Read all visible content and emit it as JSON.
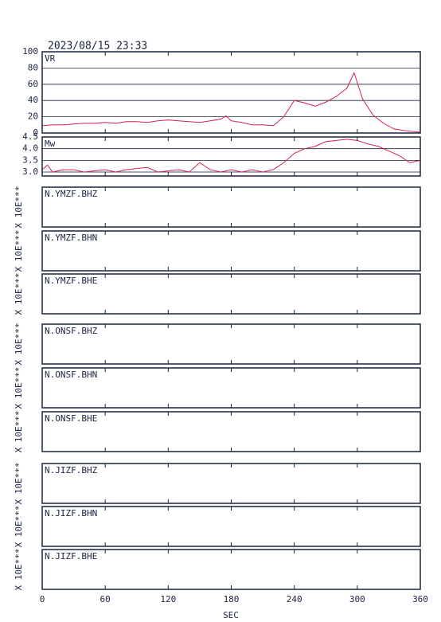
{
  "header": {
    "timestamp": "2023/08/15 23:33"
  },
  "x_axis": {
    "label": "SEC",
    "xlim": [
      0,
      360
    ],
    "xticks": [
      0,
      60,
      120,
      180,
      240,
      300,
      360
    ]
  },
  "chart_data": [
    {
      "type": "line",
      "ylabel": "VR",
      "color": "#d6204e",
      "grid": true,
      "ylim": [
        0,
        100
      ],
      "yticks": [
        0,
        20,
        40,
        60,
        80,
        100
      ],
      "x": [
        0,
        10,
        20,
        30,
        40,
        50,
        60,
        70,
        80,
        90,
        100,
        110,
        120,
        130,
        140,
        150,
        160,
        170,
        175,
        180,
        190,
        200,
        210,
        220,
        230,
        240,
        250,
        260,
        270,
        280,
        290,
        297,
        305,
        315,
        325,
        335,
        345,
        360
      ],
      "values": [
        9,
        10,
        10,
        11,
        12,
        12,
        13,
        12,
        14,
        14,
        13,
        15,
        16,
        15,
        14,
        13,
        15,
        17,
        21,
        15,
        13,
        10,
        10,
        9,
        20,
        40,
        37,
        33,
        38,
        45,
        55,
        74,
        42,
        22,
        12,
        5,
        3,
        1
      ]
    },
    {
      "type": "line",
      "ylabel": "Mw",
      "color": "#d6204e",
      "grid": true,
      "ylim": [
        2.83,
        4.5
      ],
      "yticks": [
        {
          "value": 3,
          "label": "3.0"
        },
        3.5,
        {
          "value": 4,
          "label": "4.0"
        },
        4.5
      ],
      "x": [
        0,
        5,
        10,
        20,
        30,
        40,
        50,
        60,
        70,
        80,
        100,
        110,
        130,
        140,
        150,
        160,
        170,
        180,
        190,
        200,
        210,
        220,
        230,
        240,
        250,
        260,
        270,
        280,
        290,
        300,
        310,
        320,
        330,
        340,
        350,
        360
      ],
      "values": [
        3.1,
        3.3,
        3.0,
        3.1,
        3.1,
        3.0,
        3.05,
        3.1,
        3.0,
        3.1,
        3.2,
        3.0,
        3.1,
        3.0,
        3.4,
        3.1,
        3.0,
        3.1,
        3.0,
        3.1,
        3.0,
        3.1,
        3.4,
        3.8,
        4.0,
        4.1,
        4.3,
        4.35,
        4.4,
        4.35,
        4.2,
        4.1,
        3.9,
        3.7,
        3.4,
        3.5
      ]
    },
    {
      "type": "waveform",
      "label": "N.YMZF.BHZ",
      "ylabel": "X 10E***"
    },
    {
      "type": "waveform",
      "label": "N.YMZF.BHN",
      "ylabel": "X 10E***"
    },
    {
      "type": "waveform",
      "label": "N.YMZF.BHE",
      "ylabel": "X 10E***"
    },
    {
      "type": "waveform",
      "label": "N.ONSF.BHZ",
      "ylabel": "X 10E***"
    },
    {
      "type": "waveform",
      "label": "N.ONSF.BHN",
      "ylabel": "X 10E***"
    },
    {
      "type": "waveform",
      "label": "N.ONSF.BHE",
      "ylabel": "X 10E***"
    },
    {
      "type": "waveform",
      "label": "N.JIZF.BHZ",
      "ylabel": "X 10E***"
    },
    {
      "type": "waveform",
      "label": "N.JIZF.BHN",
      "ylabel": "X 10E***"
    },
    {
      "type": "waveform",
      "label": "N.JIZF.BHE",
      "ylabel": "X 10E***"
    }
  ]
}
